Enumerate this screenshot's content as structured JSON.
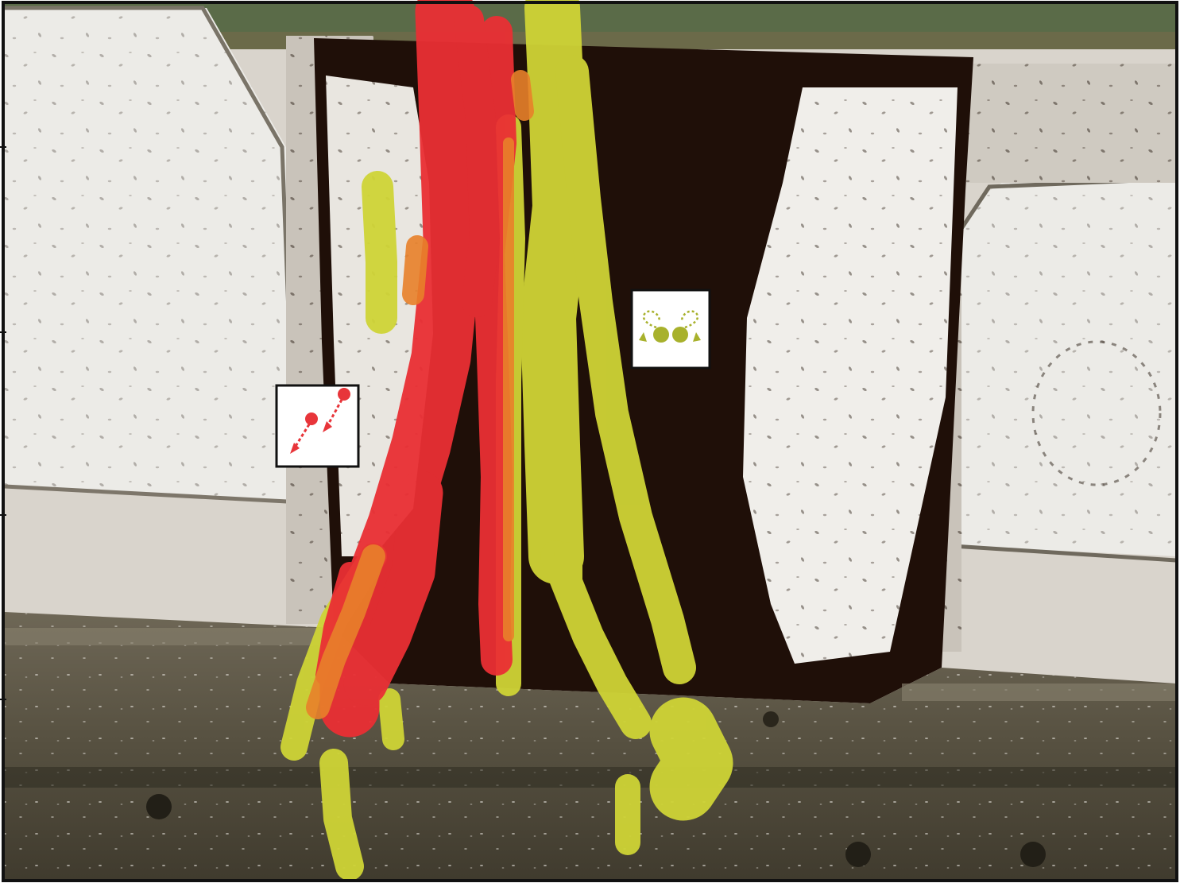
{
  "scene": {
    "description_hidden": "",
    "colors": {
      "frame": "#111111",
      "floor_light": "#e6e2dc",
      "floor_grey": "#bcb5ac",
      "channel_dark": "#1c0d07",
      "ledge": "#5e5847",
      "ledge_dark": "#3d3a2c",
      "top_strip": "#5d7049",
      "track_red": "#ea2f34",
      "track_orange": "#e8812a",
      "track_yellow": "#cfd436",
      "icon_red": "#e8353a",
      "icon_yellow": "#a8b12c"
    },
    "legend_icons": [
      {
        "name": "parallel-motion-icon",
        "color_key": "icon_red"
      },
      {
        "name": "circling-motion-icon",
        "color_key": "icon_yellow"
      }
    ]
  }
}
